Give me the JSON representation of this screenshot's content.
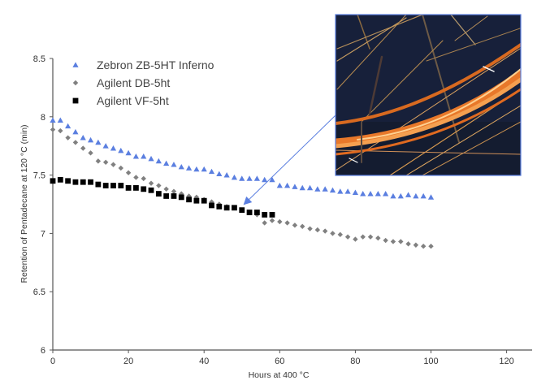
{
  "chart_data": {
    "type": "scatter",
    "title": "",
    "xlabel": "Hours at 400 °C",
    "ylabel": "Retention of Pentadecane at 120 °C (min)",
    "xlim": [
      0,
      127
    ],
    "ylim": [
      6,
      8.5
    ],
    "x_ticks": [
      0,
      20,
      40,
      60,
      80,
      100,
      120
    ],
    "x_tick_labels": [
      "0",
      "20",
      "40",
      "60",
      "80",
      "100",
      "120"
    ],
    "y_ticks": [
      6,
      6.5,
      7,
      7.5,
      8,
      8.5
    ],
    "y_tick_labels": [
      "6",
      "6.5",
      "7",
      "7.5",
      "8",
      "8.5"
    ],
    "grid": false,
    "legend_position": "top-left",
    "series": [
      {
        "name": "Zebron ZB-5HT Inferno",
        "marker": "triangle",
        "color": "#5b7fe0",
        "x": [
          0,
          2,
          4,
          6,
          8,
          10,
          12,
          14,
          16,
          18,
          20,
          22,
          24,
          26,
          28,
          30,
          32,
          34,
          36,
          38,
          40,
          42,
          44,
          46,
          48,
          50,
          52,
          54,
          56,
          58,
          60,
          62,
          64,
          66,
          68,
          70,
          72,
          74,
          76,
          78,
          80,
          82,
          84,
          86,
          88,
          90,
          92,
          94,
          96,
          98,
          100
        ],
        "y": [
          7.97,
          7.97,
          7.92,
          7.87,
          7.82,
          7.8,
          7.78,
          7.75,
          7.73,
          7.71,
          7.69,
          7.66,
          7.66,
          7.64,
          7.62,
          7.6,
          7.59,
          7.57,
          7.56,
          7.55,
          7.55,
          7.53,
          7.51,
          7.5,
          7.48,
          7.47,
          7.47,
          7.47,
          7.46,
          7.46,
          7.41,
          7.41,
          7.4,
          7.39,
          7.39,
          7.38,
          7.38,
          7.37,
          7.36,
          7.36,
          7.35,
          7.34,
          7.34,
          7.34,
          7.34,
          7.32,
          7.32,
          7.33,
          7.32,
          7.32,
          7.31
        ]
      },
      {
        "name": "Agilent DB-5ht",
        "marker": "diamond",
        "color": "#808080",
        "x": [
          0,
          2,
          4,
          6,
          8,
          10,
          12,
          14,
          16,
          18,
          20,
          22,
          24,
          26,
          28,
          30,
          32,
          34,
          36,
          38,
          40,
          42,
          44,
          46,
          48,
          50,
          52,
          54,
          56,
          58,
          60,
          62,
          64,
          66,
          68,
          70,
          72,
          74,
          76,
          78,
          80,
          82,
          84,
          86,
          88,
          90,
          92,
          94,
          96,
          98,
          100
        ],
        "y": [
          7.89,
          7.88,
          7.82,
          7.78,
          7.73,
          7.69,
          7.62,
          7.61,
          7.59,
          7.56,
          7.52,
          7.48,
          7.47,
          7.43,
          7.41,
          7.38,
          7.36,
          7.34,
          7.32,
          7.31,
          7.29,
          7.27,
          7.25,
          7.23,
          7.22,
          7.2,
          7.18,
          7.16,
          7.09,
          7.11,
          7.1,
          7.09,
          7.07,
          7.06,
          7.04,
          7.03,
          7.02,
          7.0,
          6.99,
          6.97,
          6.95,
          6.97,
          6.97,
          6.96,
          6.94,
          6.93,
          6.93,
          6.91,
          6.9,
          6.89,
          6.89
        ]
      },
      {
        "name": "Agilent VF-5ht",
        "marker": "square",
        "color": "#000000",
        "x": [
          0,
          2,
          4,
          6,
          8,
          10,
          12,
          14,
          16,
          18,
          20,
          22,
          24,
          26,
          28,
          30,
          32,
          34,
          36,
          38,
          40,
          42,
          44,
          46,
          48,
          50,
          52,
          54,
          56,
          58
        ],
        "y": [
          7.45,
          7.46,
          7.45,
          7.44,
          7.44,
          7.44,
          7.42,
          7.41,
          7.41,
          7.41,
          7.39,
          7.39,
          7.38,
          7.37,
          7.34,
          7.32,
          7.32,
          7.31,
          7.29,
          7.28,
          7.28,
          7.24,
          7.23,
          7.22,
          7.22,
          7.2,
          7.18,
          7.18,
          7.16,
          7.16
        ]
      }
    ],
    "annotation": {
      "type": "inset-photo-with-arrow",
      "arrow_points_to": {
        "x": 51,
        "y": 7.26
      },
      "accent_color": "#5b7fe0"
    }
  }
}
